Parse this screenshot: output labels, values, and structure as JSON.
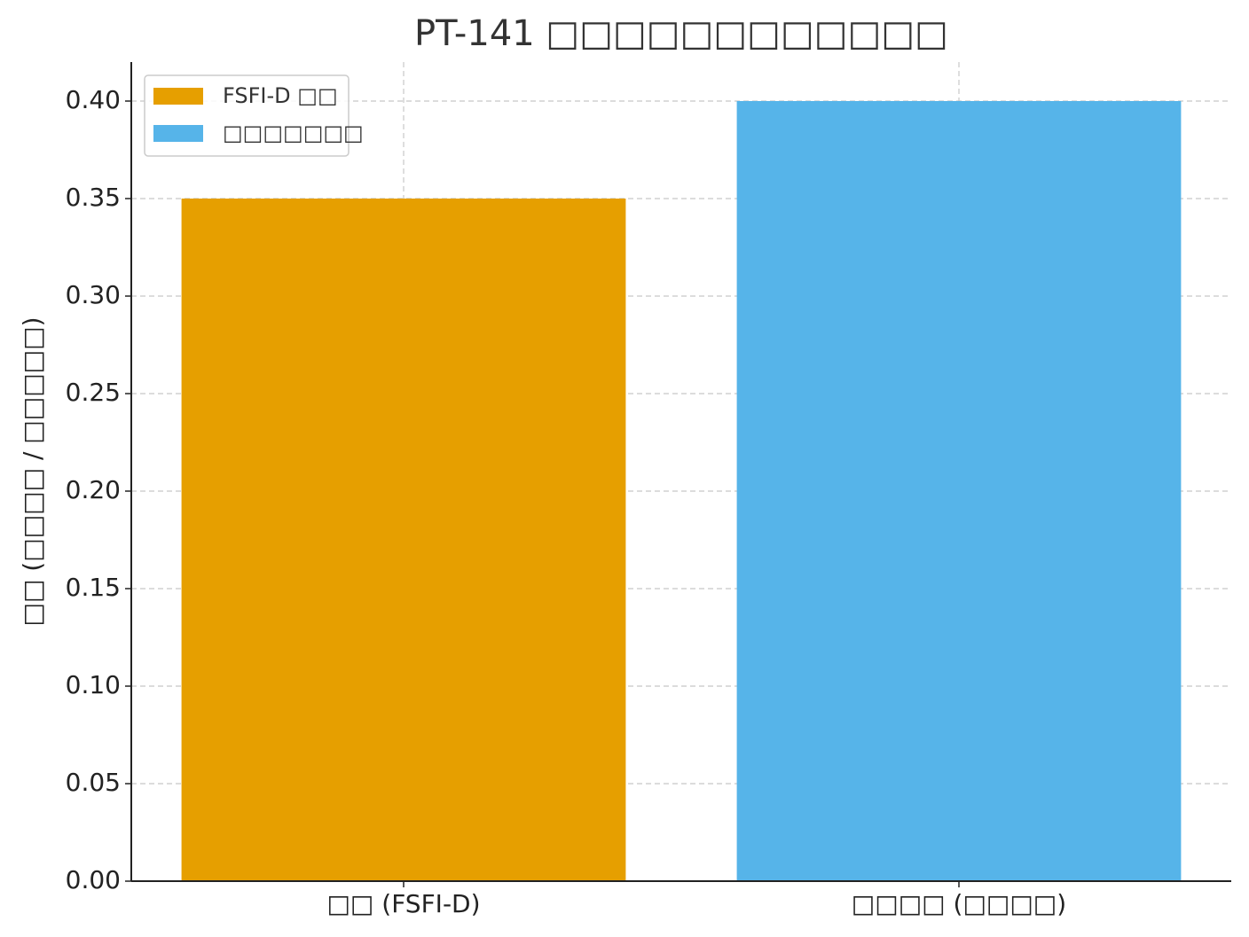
{
  "chart_data": {
    "type": "bar",
    "title": "PT-141 □□□□□□□□□□□□",
    "y_label": "□□ (□□□□ / □□□□□)",
    "categories": [
      "□□ (FSFI-D)",
      "□□□□ (□□□□)"
    ],
    "series": [
      {
        "name": "FSFI-D □□",
        "color": "#E69F00",
        "values": [
          0.35,
          null
        ]
      },
      {
        "name": "□□□□□□□",
        "color": "#56B4E9",
        "values": [
          null,
          0.4
        ]
      }
    ],
    "ylim": [
      0,
      0.42
    ],
    "yticks": [
      {
        "value": 0,
        "label": "0.00"
      },
      {
        "value": 0.05,
        "label": "0.05"
      },
      {
        "value": 0.1,
        "label": "0.10"
      },
      {
        "value": 0.15,
        "label": "0.15"
      },
      {
        "value": 0.2,
        "label": "0.20"
      },
      {
        "value": 0.25,
        "label": "0.25"
      },
      {
        "value": 0.3,
        "label": "0.30"
      },
      {
        "value": 0.35,
        "label": "0.35"
      },
      {
        "value": 0.4,
        "label": "0.40"
      }
    ],
    "grid": true,
    "legend_position": "upper-left"
  }
}
